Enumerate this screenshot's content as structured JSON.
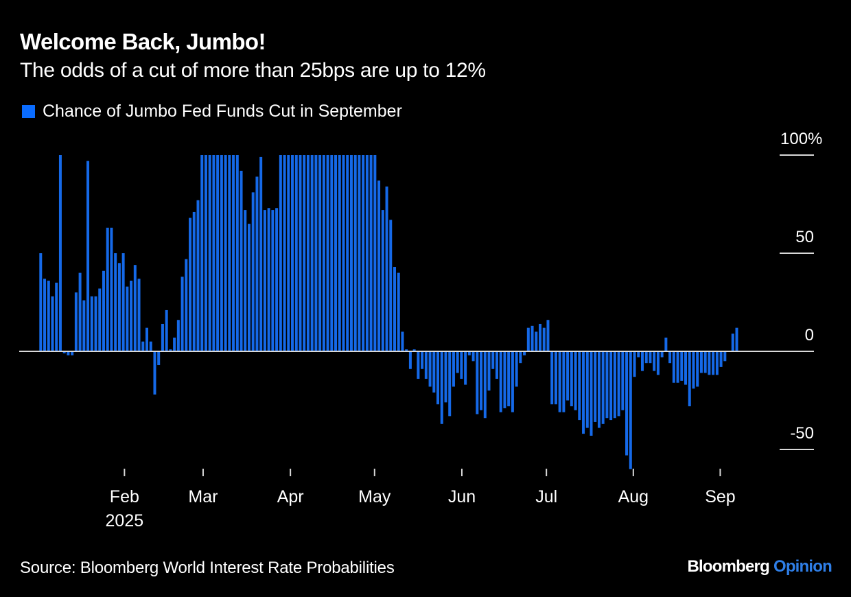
{
  "header": {
    "title": "Welcome Back, Jumbo!",
    "subtitle": "The odds of a cut of more than 25bps are up to 12%"
  },
  "legend": {
    "label": "Chance of Jumbo Fed Funds Cut in September",
    "color": "#0A6CFF"
  },
  "footer": {
    "source": "Source: Bloomberg World Interest Rate Probabilities",
    "brand_primary": "Bloomberg",
    "brand_secondary": "Opinion",
    "brand_secondary_color": "#2F7FE8"
  },
  "colors": {
    "background": "#000000",
    "bar": "#1569E8",
    "axis": "#D9D9D9",
    "text": "#FFFFFF"
  },
  "chart_data": {
    "type": "bar",
    "title": "Welcome Back, Jumbo!",
    "subtitle": "The odds of a cut of more than 25bps are up to 12%",
    "series": [
      {
        "name": "Chance of Jumbo Fed Funds Cut in September",
        "unit": "%",
        "frequency": "daily (business days), Jan 2025 - Sep 2025",
        "values": [
          50,
          37,
          36,
          28,
          35,
          100,
          -1,
          -2,
          -2,
          30,
          40,
          26,
          97,
          28,
          28,
          32,
          41,
          63,
          63,
          50,
          45,
          50,
          33,
          36,
          44,
          37,
          5,
          12,
          5,
          -22,
          -7,
          14,
          21,
          1,
          7,
          16,
          38,
          47,
          68,
          71,
          77,
          100,
          100,
          100,
          100,
          100,
          100,
          100,
          100,
          100,
          100,
          92,
          72,
          65,
          81,
          89,
          99,
          72,
          73,
          72,
          73,
          100,
          100,
          100,
          100,
          100,
          100,
          100,
          100,
          100,
          100,
          100,
          100,
          100,
          100,
          100,
          100,
          100,
          100,
          100,
          100,
          100,
          100,
          100,
          100,
          100,
          87,
          72,
          84,
          67,
          43,
          40,
          10,
          1,
          -9,
          1,
          -14,
          -9,
          -14,
          -18,
          -21,
          -27,
          -37,
          -26,
          -33,
          -18,
          -11,
          -14,
          -17,
          -2,
          -5,
          -32,
          -30,
          -34,
          -20,
          -9,
          -14,
          -31,
          -29,
          -28,
          -31,
          -18,
          -6,
          -2,
          12,
          13,
          10,
          14,
          12,
          16,
          -27,
          -27,
          -31,
          -31,
          -25,
          -28,
          -30,
          -35,
          -42,
          -39,
          -43,
          -36,
          -39,
          -37,
          -34,
          -35,
          -34,
          -33,
          -30,
          -53,
          -60,
          -13,
          -3,
          -10,
          -6,
          -6,
          -10,
          -12,
          -3,
          7,
          -6,
          -16,
          -16,
          -15,
          -17,
          -28,
          -19,
          -18,
          -11,
          -11,
          -12,
          -12,
          -12,
          -8,
          -5,
          0,
          9,
          12
        ]
      }
    ],
    "x_ticks": [
      {
        "label": "Feb",
        "sublabel": "2025",
        "index": 21.3
      },
      {
        "label": "Mar",
        "sublabel": "",
        "index": 41.3
      },
      {
        "label": "Apr",
        "sublabel": "",
        "index": 63.5
      },
      {
        "label": "May",
        "sublabel": "",
        "index": 84.9
      },
      {
        "label": "Jun",
        "sublabel": "",
        "index": 107.1
      },
      {
        "label": "Jul",
        "sublabel": "",
        "index": 128.6
      },
      {
        "label": "Aug",
        "sublabel": "",
        "index": 150.7
      },
      {
        "label": "Sep",
        "sublabel": "",
        "index": 172.8
      }
    ],
    "y_ticks": [
      {
        "value": 100,
        "label": "100%"
      },
      {
        "value": 50,
        "label": "50"
      },
      {
        "value": 0,
        "label": "0"
      },
      {
        "value": -50,
        "label": "-50"
      }
    ],
    "xlabel": "",
    "ylabel": "",
    "ylim": [
      -60,
      100
    ],
    "y_axis_side": "right",
    "grid": false,
    "legend_position": "top-left"
  }
}
